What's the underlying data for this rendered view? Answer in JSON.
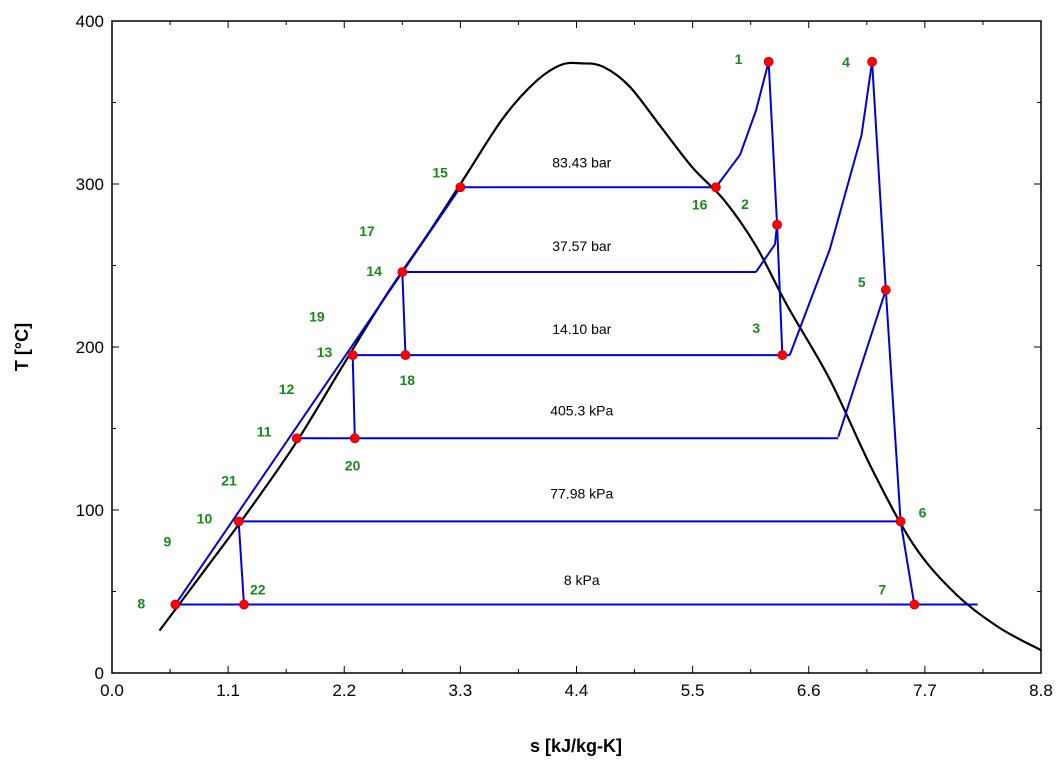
{
  "chart_data": {
    "type": "line",
    "title": "",
    "xlabel": "s [kJ/kg-K]",
    "ylabel": "T [°C]",
    "xlim": [
      0,
      8.8
    ],
    "ylim": [
      0,
      400
    ],
    "x_ticks": [
      "0.0",
      "1.1",
      "2.2",
      "3.3",
      "4.4",
      "5.5",
      "6.6",
      "7.7",
      "8.8"
    ],
    "y_ticks": [
      "0",
      "100",
      "200",
      "300",
      "400"
    ],
    "grid": false,
    "colors": {
      "dome": "#000000",
      "cycle": "#0000dd",
      "point": "#ff0000",
      "label": "#1a8a1a"
    },
    "saturation_dome": {
      "name": "",
      "s": [
        0.45,
        0.9,
        1.3,
        1.75,
        2.2,
        2.6,
        3.0,
        3.35,
        3.7,
        4.0,
        4.25,
        4.45,
        4.65,
        4.9,
        5.2,
        5.5,
        5.8,
        6.1,
        6.4,
        6.8,
        7.2,
        7.6,
        8.0,
        8.4,
        8.8
      ],
      "T": [
        26,
        65,
        100,
        142,
        190,
        232,
        270,
        305,
        340,
        362,
        373,
        374,
        372,
        360,
        335,
        310,
        290,
        262,
        225,
        180,
        125,
        78,
        48,
        28,
        14
      ]
    },
    "isobar_labels": [
      {
        "text": "83.43 bar",
        "s": 4.45,
        "T": 310
      },
      {
        "text": "37.57 bar",
        "s": 4.45,
        "T": 259
      },
      {
        "text": "14.10 bar",
        "s": 4.45,
        "T": 208
      },
      {
        "text": "405.3 kPa",
        "s": 4.45,
        "T": 158
      },
      {
        "text": "77.98 kPa",
        "s": 4.45,
        "T": 107
      },
      {
        "text": "8 kPa",
        "s": 4.45,
        "T": 54
      }
    ],
    "cycle_lines": [
      {
        "s": [
          0.6,
          3.3
        ],
        "T": [
          42,
          298
        ]
      },
      {
        "s": [
          3.3,
          5.72
        ],
        "T": [
          298,
          298
        ]
      },
      {
        "s": [
          5.72,
          5.95,
          6.1,
          6.22
        ],
        "T": [
          298,
          318,
          345,
          375
        ]
      },
      {
        "s": [
          6.22,
          6.3,
          6.35
        ],
        "T": [
          375,
          275,
          195
        ]
      },
      {
        "s": [
          6.35,
          6.42
        ],
        "T": [
          195,
          195
        ]
      },
      {
        "s": [
          6.42,
          6.8,
          7.1,
          7.2
        ],
        "T": [
          195,
          260,
          330,
          375
        ]
      },
      {
        "s": [
          7.2,
          7.33
        ],
        "T": [
          375,
          235
        ]
      },
      {
        "s": [
          7.33,
          6.88
        ],
        "T": [
          235,
          145
        ]
      },
      {
        "s": [
          7.33,
          7.47,
          7.6
        ],
        "T": [
          235,
          93,
          42
        ]
      },
      {
        "s": [
          6.3,
          6.28,
          6.1
        ],
        "T": [
          275,
          263,
          246
        ]
      },
      {
        "s": [
          2.75,
          6.1
        ],
        "T": [
          246,
          246
        ]
      },
      {
        "s": [
          2.28,
          6.35
        ],
        "T": [
          195,
          195
        ]
      },
      {
        "s": [
          1.75,
          6.88
        ],
        "T": [
          144,
          144
        ]
      },
      {
        "s": [
          1.2,
          7.47
        ],
        "T": [
          93,
          93
        ]
      },
      {
        "s": [
          0.6,
          8.2
        ],
        "T": [
          42,
          42
        ]
      },
      {
        "s": [
          2.75,
          2.78
        ],
        "T": [
          246,
          195
        ]
      },
      {
        "s": [
          2.28,
          2.3
        ],
        "T": [
          195,
          144
        ]
      },
      {
        "s": [
          1.2,
          1.25
        ],
        "T": [
          93,
          42
        ]
      }
    ],
    "state_points": [
      {
        "label": "1",
        "s": 6.22,
        "T": 375,
        "lx": -34,
        "ly": 2
      },
      {
        "label": "2",
        "s": 6.3,
        "T": 275,
        "lx": -36,
        "ly": -16
      },
      {
        "label": "3",
        "s": 6.35,
        "T": 195,
        "lx": -30,
        "ly": -22
      },
      {
        "label": "4",
        "s": 7.2,
        "T": 375,
        "lx": -30,
        "ly": 5
      },
      {
        "label": "5",
        "s": 7.33,
        "T": 235,
        "lx": -28,
        "ly": -3
      },
      {
        "label": "6",
        "s": 7.47,
        "T": 93,
        "lx": 18,
        "ly": -4
      },
      {
        "label": "7",
        "s": 7.6,
        "T": 42,
        "lx": -36,
        "ly": -10
      },
      {
        "label": "8",
        "s": 0.6,
        "T": 42,
        "lx": -38,
        "ly": 4
      },
      {
        "label": "9",
        "s": 0.62,
        "T": 80,
        "lx": -14,
        "ly": 4,
        "no_marker": true
      },
      {
        "label": "10",
        "s": 1.2,
        "T": 93,
        "lx": -42,
        "ly": 2
      },
      {
        "label": "11",
        "s": 1.75,
        "T": 144,
        "lx": -40,
        "ly": -2
      },
      {
        "label": "12",
        "s": 1.75,
        "T": 170,
        "lx": -18,
        "ly": -2,
        "no_marker": true
      },
      {
        "label": "13",
        "s": 2.28,
        "T": 195,
        "lx": -36,
        "ly": 2
      },
      {
        "label": "14",
        "s": 2.75,
        "T": 246,
        "lx": -36,
        "ly": 4
      },
      {
        "label": "15",
        "s": 3.3,
        "T": 298,
        "lx": -28,
        "ly": -10
      },
      {
        "label": "16",
        "s": 5.72,
        "T": 298,
        "lx": -24,
        "ly": 22
      },
      {
        "label": "17",
        "s": 2.55,
        "T": 268,
        "lx": -22,
        "ly": 0,
        "no_marker": true
      },
      {
        "label": "18",
        "s": 2.78,
        "T": 195,
        "lx": -6,
        "ly": 30
      },
      {
        "label": "19",
        "s": 2.0,
        "T": 218,
        "lx": -14,
        "ly": 4,
        "no_marker": true
      },
      {
        "label": "20",
        "s": 2.3,
        "T": 144,
        "lx": -10,
        "ly": 32
      },
      {
        "label": "21",
        "s": 1.3,
        "T": 115,
        "lx": -28,
        "ly": 0,
        "no_marker": true
      },
      {
        "label": "22",
        "s": 1.25,
        "T": 42,
        "lx": 6,
        "ly": -10
      }
    ]
  }
}
